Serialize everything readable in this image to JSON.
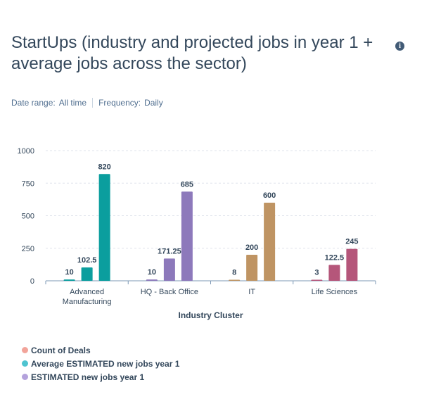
{
  "title": "StartUps (industry and projected jobs in year 1 + average jobs across the sector)",
  "info_icon": "info-icon",
  "filters": {
    "date_range_label": "Date range:",
    "date_range_value": "All time",
    "frequency_label": "Frequency:",
    "frequency_value": "Daily"
  },
  "chart_data": {
    "type": "bar",
    "xlabel": "Industry Cluster",
    "ylabel": "",
    "ylim": [
      0,
      1000
    ],
    "yticks": [
      0,
      250,
      500,
      750,
      1000
    ],
    "grid": true,
    "legend_position": "bottom",
    "categories": [
      [
        "Advanced",
        "Manufacturing"
      ],
      [
        "HQ - Back Office"
      ],
      [
        "IT"
      ],
      [
        "Life Sciences"
      ]
    ],
    "series": [
      {
        "name": "Count of Deals",
        "values": [
          10,
          10,
          8,
          3
        ],
        "labels": [
          "10",
          "10",
          "8",
          "3"
        ]
      },
      {
        "name": "Average ESTIMATED new jobs year 1",
        "values": [
          102.5,
          171.25,
          200,
          122.5
        ],
        "labels": [
          "102.5",
          "171.25",
          "200",
          "122.5"
        ]
      },
      {
        "name": "ESTIMATED new jobs year 1",
        "values": [
          820,
          685,
          600,
          245
        ],
        "labels": [
          "820",
          "685",
          "600",
          "245"
        ]
      }
    ],
    "category_colors": [
      "#0b9e9e",
      "#8d79bb",
      "#bf9463",
      "#b5567a"
    ],
    "legend_colors": [
      "#f2a49a",
      "#4fc4d0",
      "#b4a2dc"
    ]
  }
}
